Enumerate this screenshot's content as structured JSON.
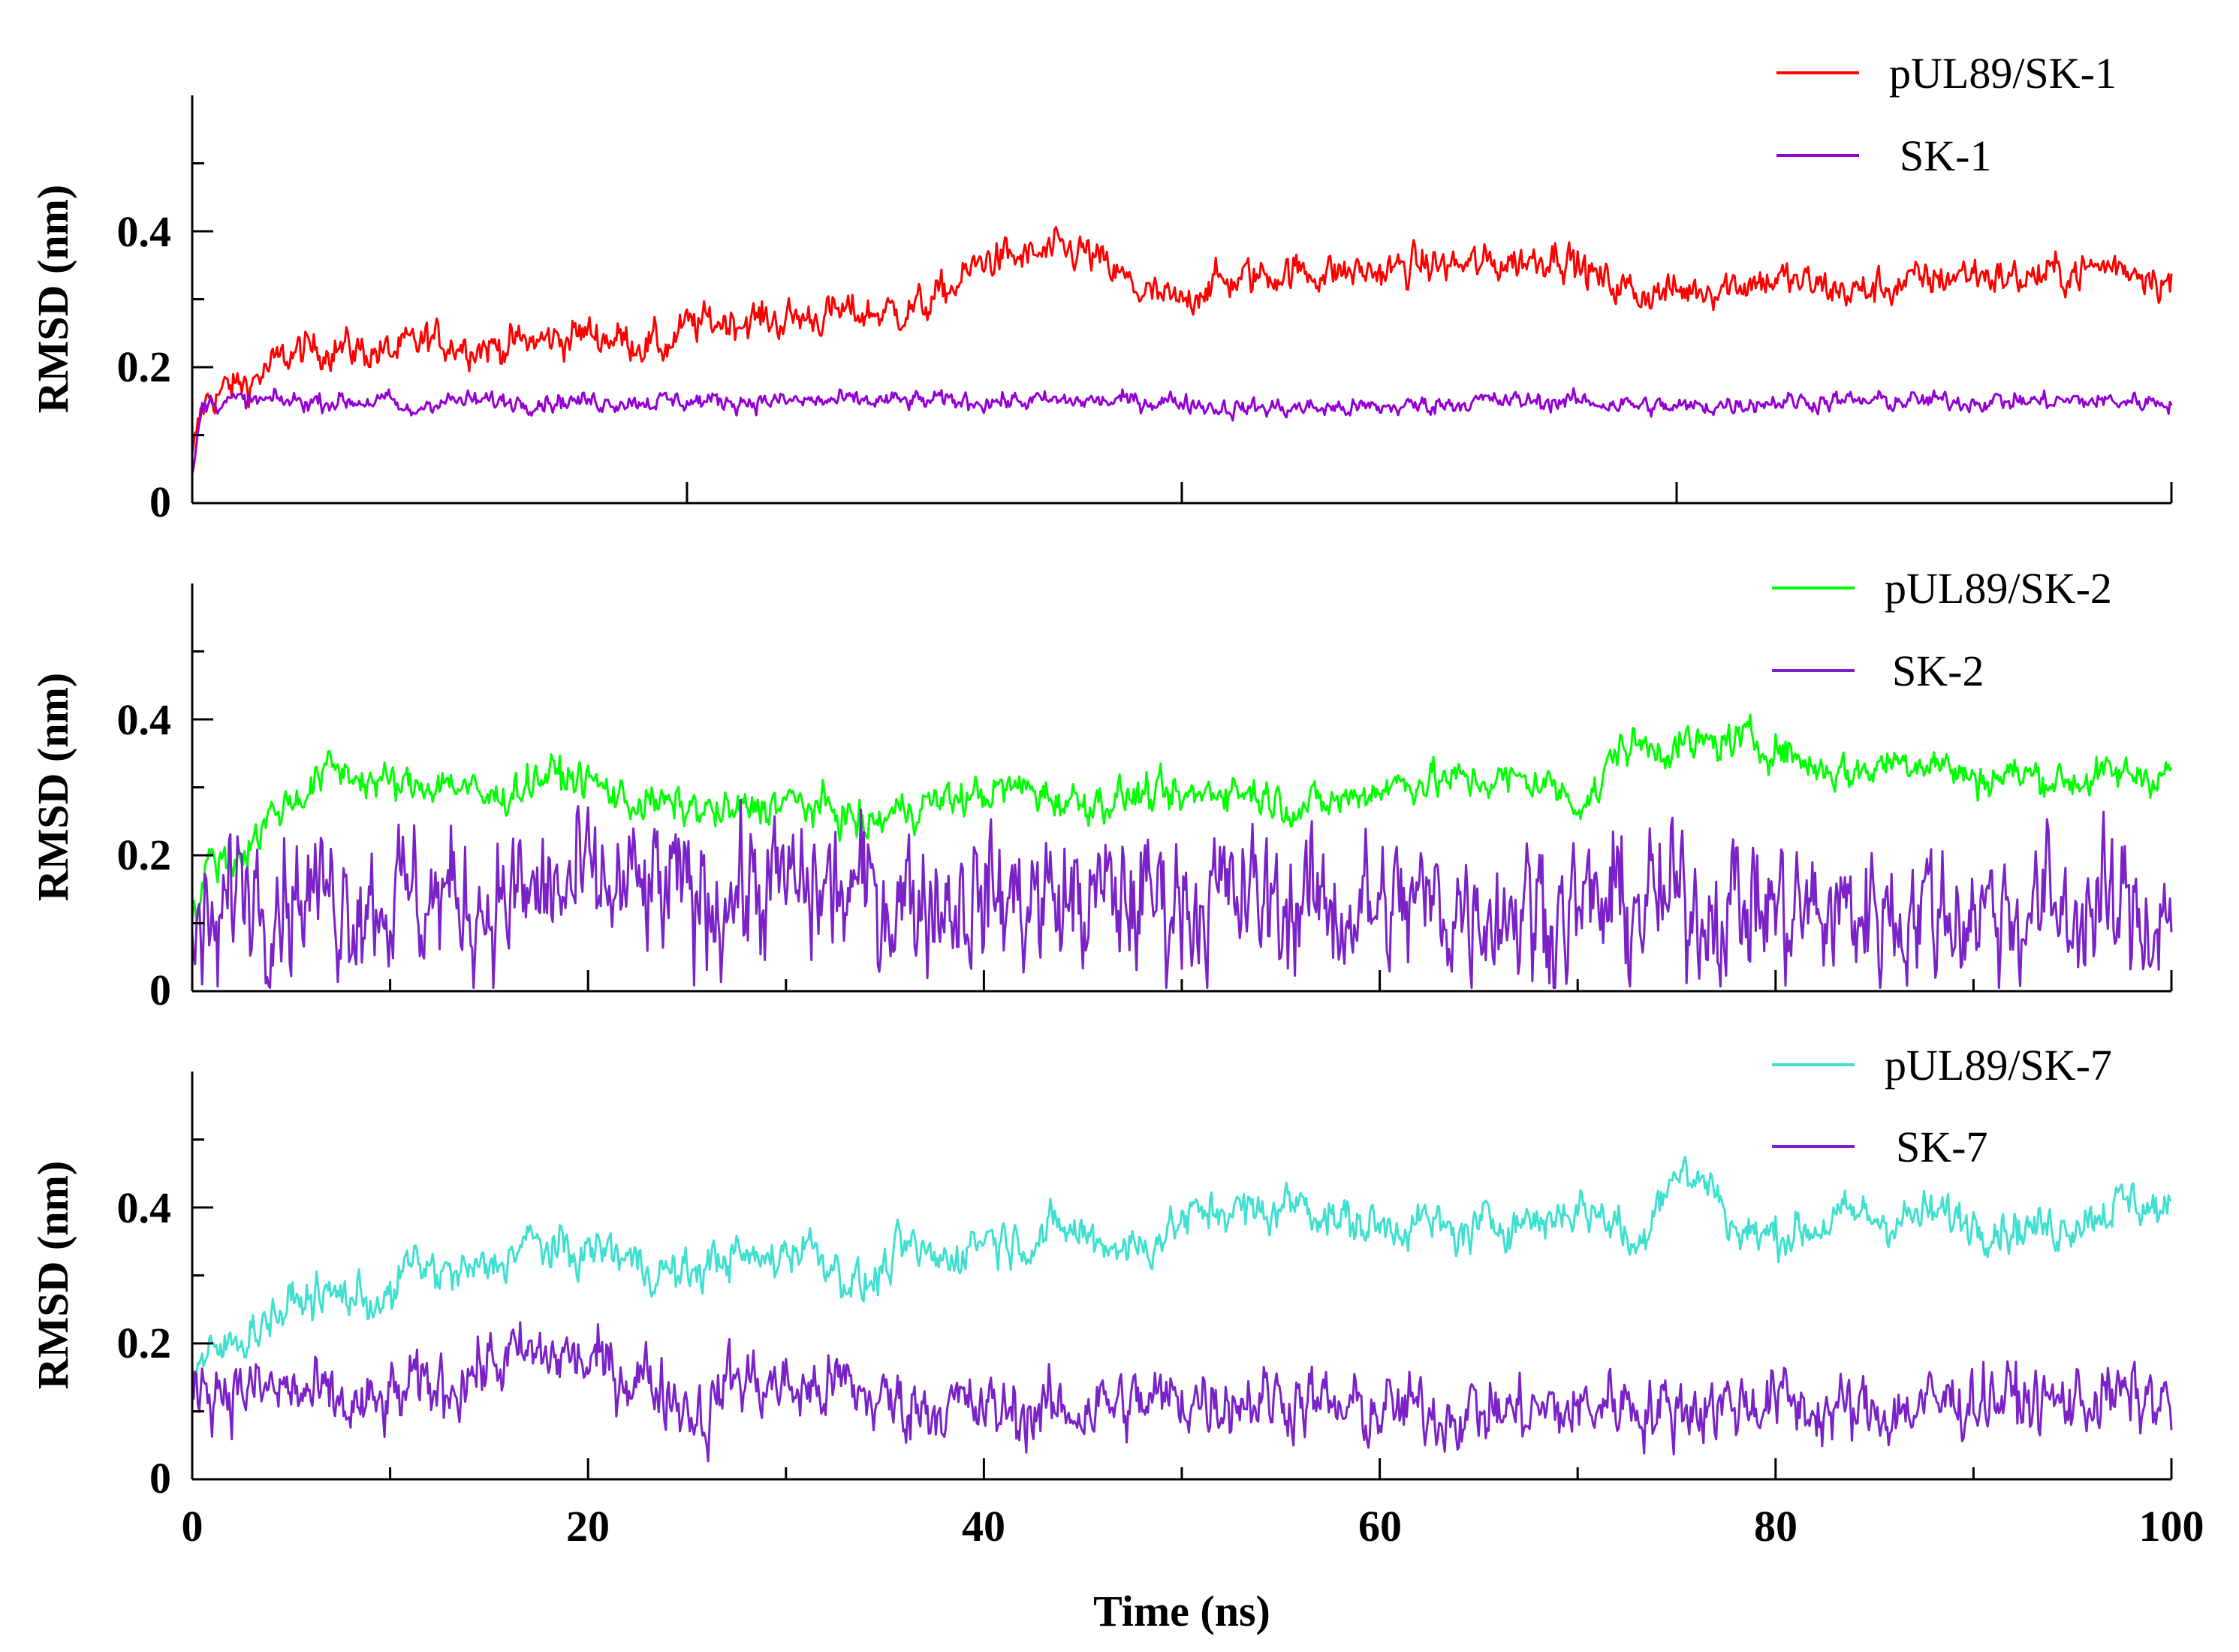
{
  "chart_data": {
    "type": "line",
    "title": "",
    "xlabel": "Time (ns)",
    "xlim": [
      0,
      100
    ],
    "x_ticks": [
      "0",
      "20",
      "40",
      "60",
      "80",
      "100"
    ],
    "panels": [
      {
        "ylabel": "RMSD (nm)",
        "ylim": [
          0,
          0.6
        ],
        "y_ticks": [
          "0",
          "0.2",
          "0.4"
        ],
        "x_minor_ticks": [
          25,
          50,
          75
        ],
        "series": [
          {
            "name": "pUL89/SK-1",
            "color": "#ff0000",
            "noise": 0.012,
            "x": [
              0,
              0.5,
              1,
              2,
              3,
              4,
              5,
              7,
              10,
              12,
              15,
              18,
              20,
              22,
              24,
              25,
              27,
              30,
              33,
              35,
              37,
              38,
              39,
              40,
              42,
              44,
              45,
              46,
              47,
              48,
              49,
              50,
              51,
              53,
              55,
              58,
              60,
              62,
              65,
              68,
              69,
              70,
              71,
              72,
              73,
              75,
              77,
              80,
              82,
              84,
              86,
              88,
              90,
              92,
              95,
              97,
              99,
              100
            ],
            "y": [
              0.06,
              0.14,
              0.16,
              0.17,
              0.18,
              0.2,
              0.22,
              0.23,
              0.22,
              0.24,
              0.23,
              0.24,
              0.25,
              0.24,
              0.23,
              0.26,
              0.27,
              0.27,
              0.28,
              0.28,
              0.29,
              0.31,
              0.33,
              0.36,
              0.36,
              0.37,
              0.37,
              0.35,
              0.33,
              0.31,
              0.3,
              0.29,
              0.32,
              0.33,
              0.34,
              0.34,
              0.34,
              0.35,
              0.35,
              0.36,
              0.37,
              0.35,
              0.33,
              0.32,
              0.31,
              0.31,
              0.32,
              0.33,
              0.32,
              0.31,
              0.32,
              0.33,
              0.34,
              0.33,
              0.34,
              0.35,
              0.34,
              0.32
            ]
          },
          {
            "name": "SK-1",
            "color": "#9400d3",
            "noise": 0.006,
            "x": [
              0,
              0.5,
              1,
              2,
              5,
              10,
              11,
              12,
              20,
              30,
              40,
              50,
              52,
              55,
              60,
              65,
              70,
              75,
              80,
              90,
              100
            ],
            "y": [
              0.04,
              0.14,
              0.15,
              0.15,
              0.15,
              0.15,
              0.13,
              0.15,
              0.15,
              0.15,
              0.15,
              0.15,
              0.14,
              0.14,
              0.14,
              0.15,
              0.15,
              0.14,
              0.15,
              0.15,
              0.15
            ]
          }
        ]
      },
      {
        "ylabel": "RMSD (nm)",
        "ylim": [
          0,
          0.6
        ],
        "y_ticks": [
          "0",
          "0.2",
          "0.4"
        ],
        "x_minor_ticks": [
          10,
          30,
          50,
          70,
          90
        ],
        "series": [
          {
            "name": "pUL89/SK-2",
            "color": "#00ff00",
            "noise": 0.012,
            "x": [
              0,
              0.5,
              1,
              2,
              3,
              4,
              5,
              6,
              7,
              9,
              11,
              13,
              15,
              18,
              20,
              22,
              25,
              27,
              30,
              33,
              34,
              36,
              38,
              40,
              42,
              44,
              46,
              48,
              50,
              52,
              54,
              56,
              58,
              60,
              62,
              65,
              68,
              70,
              71,
              72,
              74,
              76,
              78,
              80,
              82,
              84,
              86,
              88,
              90,
              92,
              95,
              98,
              100
            ],
            "y": [
              0.1,
              0.15,
              0.2,
              0.19,
              0.22,
              0.26,
              0.28,
              0.3,
              0.33,
              0.31,
              0.3,
              0.31,
              0.28,
              0.32,
              0.31,
              0.28,
              0.27,
              0.26,
              0.28,
              0.26,
              0.24,
              0.27,
              0.28,
              0.29,
              0.3,
              0.28,
              0.28,
              0.29,
              0.28,
              0.3,
              0.29,
              0.27,
              0.28,
              0.3,
              0.31,
              0.31,
              0.31,
              0.28,
              0.29,
              0.36,
              0.36,
              0.36,
              0.37,
              0.36,
              0.33,
              0.32,
              0.34,
              0.34,
              0.31,
              0.32,
              0.31,
              0.32,
              0.32
            ]
          },
          {
            "name": "SK-2",
            "color": "#7a22c8",
            "noise": 0.045,
            "x": [
              0,
              1,
              1.5,
              2,
              5,
              10,
              15,
              20,
              25,
              30,
              35,
              40,
              45,
              50,
              55,
              60,
              65,
              70,
              75,
              78,
              80,
              82,
              85,
              90,
              95,
              100
            ],
            "y": [
              0.08,
              0.07,
              0.08,
              0.17,
              0.15,
              0.14,
              0.13,
              0.15,
              0.14,
              0.15,
              0.14,
              0.14,
              0.13,
              0.14,
              0.13,
              0.12,
              0.13,
              0.12,
              0.13,
              0.13,
              0.12,
              0.11,
              0.12,
              0.12,
              0.12,
              0.11
            ]
          }
        ]
      },
      {
        "ylabel": "RMSD (nm)",
        "ylim": [
          0,
          0.6
        ],
        "y_ticks": [
          "0",
          "0.2",
          "0.4"
        ],
        "x_minor_ticks": [
          10,
          30,
          50,
          70,
          90
        ],
        "series": [
          {
            "name": "pUL89/SK-7",
            "color": "#40e0d0",
            "noise": 0.014,
            "x": [
              0,
              1,
              2,
              4,
              6,
              8,
              10,
              11,
              13,
              15,
              17,
              19,
              21,
              23,
              25,
              27,
              29,
              31,
              33,
              34,
              36,
              38,
              40,
              42,
              44,
              46,
              48,
              50,
              52,
              54,
              56,
              58,
              60,
              62,
              64,
              66,
              68,
              70,
              72,
              73,
              74,
              75,
              77,
              78,
              80,
              82,
              84,
              86,
              88,
              90,
              92,
              94,
              96,
              98,
              100
            ],
            "y": [
              0.16,
              0.18,
              0.2,
              0.24,
              0.27,
              0.27,
              0.26,
              0.32,
              0.3,
              0.31,
              0.35,
              0.33,
              0.34,
              0.31,
              0.3,
              0.33,
              0.32,
              0.35,
              0.3,
              0.28,
              0.34,
              0.32,
              0.36,
              0.35,
              0.37,
              0.35,
              0.34,
              0.38,
              0.4,
              0.39,
              0.41,
              0.38,
              0.37,
              0.38,
              0.36,
              0.38,
              0.38,
              0.4,
              0.38,
              0.33,
              0.42,
              0.45,
              0.43,
              0.36,
              0.36,
              0.37,
              0.39,
              0.38,
              0.39,
              0.38,
              0.37,
              0.37,
              0.39,
              0.41,
              0.39
            ]
          },
          {
            "name": "SK-7",
            "color": "#7a22c8",
            "noise": 0.022,
            "x": [
              0,
              1,
              3,
              5,
              7,
              9,
              11,
              13,
              15,
              17,
              19,
              21,
              23,
              25,
              26,
              27,
              29,
              31,
              33,
              34,
              36,
              38,
              40,
              42,
              44,
              46,
              48,
              50,
              52,
              54,
              56,
              58,
              60,
              62,
              64,
              66,
              68,
              70,
              72,
              74,
              76,
              78,
              80,
              82,
              84,
              86,
              88,
              90,
              92,
              94,
              96,
              98,
              100
            ],
            "y": [
              0.15,
              0.14,
              0.13,
              0.13,
              0.11,
              0.1,
              0.13,
              0.14,
              0.17,
              0.18,
              0.18,
              0.16,
              0.15,
              0.11,
              0.09,
              0.15,
              0.14,
              0.13,
              0.14,
              0.12,
              0.11,
              0.11,
              0.1,
              0.1,
              0.1,
              0.11,
              0.11,
              0.12,
              0.12,
              0.12,
              0.12,
              0.1,
              0.1,
              0.1,
              0.1,
              0.1,
              0.1,
              0.1,
              0.12,
              0.1,
              0.11,
              0.11,
              0.12,
              0.1,
              0.1,
              0.1,
              0.11,
              0.12,
              0.12,
              0.11,
              0.12,
              0.12,
              0.11
            ]
          }
        ]
      }
    ]
  }
}
